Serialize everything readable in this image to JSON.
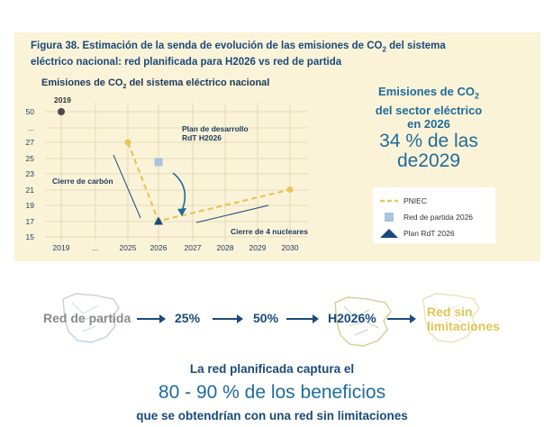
{
  "figure_title_line1": "Figura 38. Estimación de la senda de evolución de las emisiones de CO",
  "figure_title_sub": "2",
  "figure_title_line1_end": " del sistema",
  "figure_title_line2": "eléctrico nacional: red planificada para H2026 vs red de partida",
  "chart_title": "Emisiones de CO",
  "chart_title_sub": "2",
  "chart_title_end": " del sistema eléctrico nacional",
  "right_head_1": "Emisiones de CO",
  "right_head_sub": "2",
  "right_head_2": "del sector eléctrico",
  "right_head_3": "en 2026",
  "right_big_1": "34 % de las",
  "right_big_2": "de2029",
  "legend": {
    "pniec": "PNIEC",
    "red": "Red de partida 2026",
    "plan": "Plan RdT 2026"
  },
  "colors": {
    "pniec": "#e6c65a",
    "red": "#a7c4e0",
    "plan": "#1a4a7a",
    "text_dark": "#1a3a5c"
  },
  "chart_data": {
    "type": "line",
    "title": "Emisiones de CO2 del sistema eléctrico nacional",
    "x_categories": [
      "2019",
      "...",
      "2025",
      "2026",
      "2027",
      "2028",
      "2029",
      "2030"
    ],
    "y_ticks": [
      "50",
      "...",
      "27",
      "25",
      "23",
      "21",
      "19",
      "17",
      "15"
    ],
    "point_2019": {
      "x": "2019",
      "y": 50,
      "label": "2019"
    },
    "series": [
      {
        "name": "PNIEC",
        "x": [
          "2025",
          "2026",
          "2030"
        ],
        "values": [
          27,
          17,
          21
        ]
      },
      {
        "name": "Red de partida 2026",
        "x": [
          "2026"
        ],
        "values": [
          24.5
        ]
      },
      {
        "name": "Plan RdT 2026",
        "x": [
          "2026"
        ],
        "values": [
          17
        ]
      }
    ],
    "annotations": [
      "Plan de desarrollo RdT H2026",
      "Cierre de carbón",
      "Cierre de 4 nucleares"
    ]
  },
  "flow": {
    "start": "Red de partida",
    "step1": "25%",
    "step2": "50%",
    "step3": "H2026%",
    "end": "Red sin limitaciones"
  },
  "bottom": {
    "line1": "La red planificada captura el",
    "line2": "80 - 90 % de los beneficios",
    "line3": "que se obtendrían con una red sin limitaciones"
  }
}
